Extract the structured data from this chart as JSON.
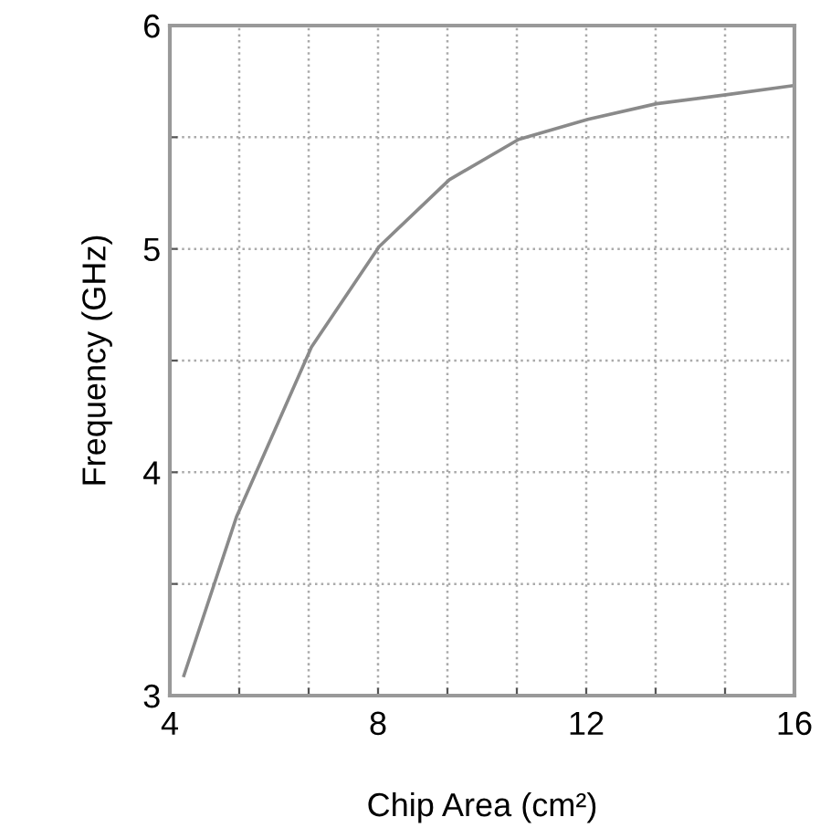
{
  "chart_data": {
    "type": "line",
    "xlabel": "Chip Area (cm²)",
    "ylabel": "Frequency (GHz)",
    "x": [
      4.27,
      5.28,
      6.72,
      8.02,
      9.37,
      10.7,
      12.03,
      13.35,
      14.68,
      15.95
    ],
    "series": [
      {
        "color": "#8a8a8a",
        "values": [
          3.09,
          3.8,
          4.56,
          5.01,
          5.31,
          5.49,
          5.58,
          5.65,
          5.69,
          5.73
        ]
      }
    ],
    "xlim": [
      4,
      16
    ],
    "ylim": [
      3,
      6
    ],
    "xticks": [
      4,
      {
        "value": 5.333,
        "label": null
      },
      {
        "value": 6.667,
        "label": null
      },
      8,
      {
        "value": 9.333,
        "label": null
      },
      {
        "value": 10.667,
        "label": null
      },
      12,
      {
        "value": 13.333,
        "label": null
      },
      {
        "value": 14.667,
        "label": null
      },
      16
    ],
    "yticks": [
      3,
      {
        "value": 3.5,
        "label": null
      },
      4,
      {
        "value": 4.5,
        "label": null
      },
      5,
      {
        "value": 5.5,
        "label": null
      },
      6
    ],
    "grid": true,
    "marker": "none",
    "line_style": "solid"
  }
}
